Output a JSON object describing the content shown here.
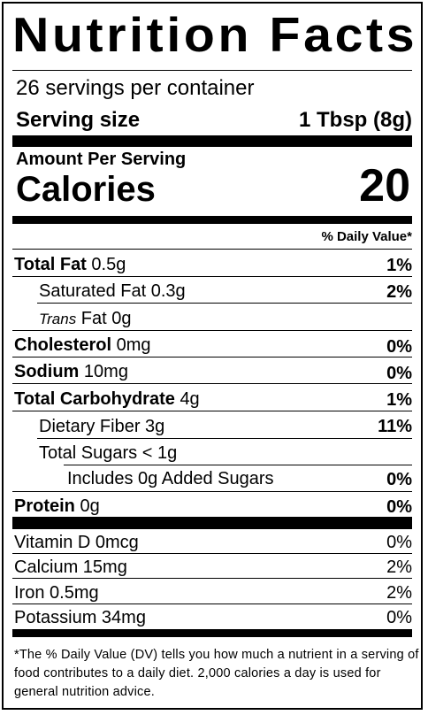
{
  "title": "Nutrition Facts",
  "servings": "26 servings per container",
  "serving_size_label": "Serving size",
  "serving_size_value": "1 Tbsp (8g)",
  "amount_per_serving": "Amount Per Serving",
  "calories_label": "Calories",
  "calories_value": "20",
  "dv_header": "% Daily Value*",
  "nutrients": {
    "total_fat": {
      "label": "Total Fat",
      "amount": "0.5g",
      "dv": "1%"
    },
    "saturated_fat": {
      "label": "Saturated Fat 0.3g",
      "dv": "2%"
    },
    "trans_fat": {
      "label_italic": "Trans",
      "label_rest": "Fat 0g"
    },
    "cholesterol": {
      "label": "Cholesterol",
      "amount": "0mg",
      "dv": "0%"
    },
    "sodium": {
      "label": "Sodium",
      "amount": "10mg",
      "dv": "0%"
    },
    "total_carb": {
      "label": "Total Carbohydrate",
      "amount": "4g",
      "dv": "1%"
    },
    "fiber": {
      "label": "Dietary Fiber 3g",
      "dv": "11%"
    },
    "total_sugars": {
      "label": "Total Sugars < 1g"
    },
    "added_sugars": {
      "label": "Includes 0g Added Sugars",
      "dv": "0%"
    },
    "protein": {
      "label": "Protein",
      "amount": "0g",
      "dv": "0%"
    }
  },
  "vitamins": [
    {
      "label": "Vitamin D 0mcg",
      "dv": "0%"
    },
    {
      "label": "Calcium 15mg",
      "dv": "2%"
    },
    {
      "label": "Iron 0.5mg",
      "dv": "2%"
    },
    {
      "label": "Potassium 34mg",
      "dv": "0%"
    }
  ],
  "footnote": "*The % Daily Value (DV) tells you how much a nutrient in a serving of food contributes to a daily diet. 2,000 calories a day is used for general nutrition advice."
}
